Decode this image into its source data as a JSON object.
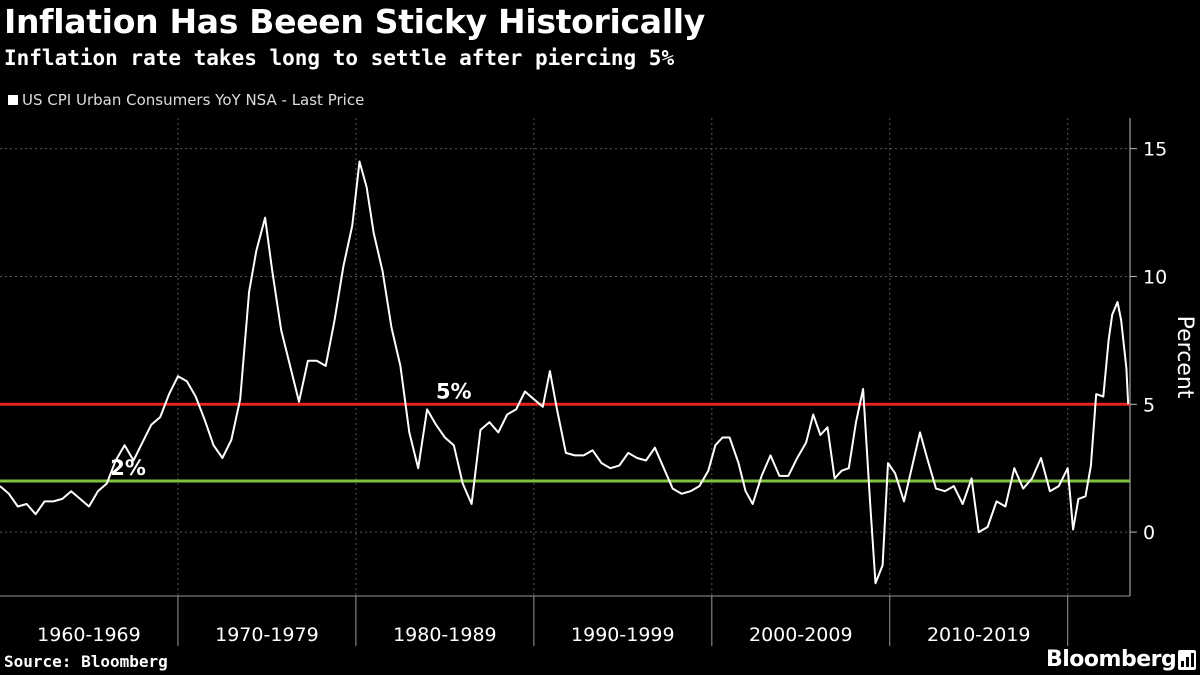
{
  "title": "Inflation Has Beeen Sticky Historically",
  "subtitle": "Inflation rate takes long to settle after piercing 5%",
  "source": "Source: Bloomberg",
  "brand": "Bloomberg",
  "colors": {
    "background": "#000000",
    "series": "#ffffff",
    "line_5pct": "#e8221e",
    "line_2pct": "#82c241",
    "grid": "#555555"
  },
  "chart_data": {
    "type": "line",
    "title": "Inflation Has Beeen Sticky Historically",
    "xlabel": "",
    "ylabel": "Percent",
    "xlim": [
      1960,
      2023.5
    ],
    "ylim": [
      -2.5,
      16.2
    ],
    "yticks": [
      0,
      5,
      10,
      15
    ],
    "ytick_labels": [
      "0",
      "5",
      "10",
      "15"
    ],
    "x_bands": [
      {
        "label": "1960-1969",
        "start": 1960,
        "end": 1970
      },
      {
        "label": "1970-1979",
        "start": 1970,
        "end": 1980
      },
      {
        "label": "1980-1989",
        "start": 1980,
        "end": 1990
      },
      {
        "label": "1990-1999",
        "start": 1990,
        "end": 2000
      },
      {
        "label": "2000-2009",
        "start": 2000,
        "end": 2010
      },
      {
        "label": "2010-2019",
        "start": 2010,
        "end": 2020
      }
    ],
    "reference_lines": [
      {
        "label": "5%",
        "value": 5,
        "color": "#e8221e",
        "label_x": 1985.5
      },
      {
        "label": "2%",
        "value": 2,
        "color": "#82c241",
        "label_x": 1967.2
      }
    ],
    "series": [
      {
        "name": "US CPI Urban Consumers YoY NSA - Last Price",
        "color": "#ffffff",
        "x": [
          1960.0,
          1960.5,
          1961.0,
          1961.5,
          1962.0,
          1962.5,
          1963.0,
          1963.5,
          1964.0,
          1964.5,
          1965.0,
          1965.5,
          1966.0,
          1966.5,
          1967.0,
          1967.5,
          1968.0,
          1968.5,
          1969.0,
          1969.5,
          1970.0,
          1970.5,
          1971.0,
          1971.5,
          1972.0,
          1972.5,
          1973.0,
          1973.5,
          1974.0,
          1974.4,
          1974.9,
          1975.3,
          1975.8,
          1976.3,
          1976.8,
          1977.3,
          1977.8,
          1978.3,
          1978.8,
          1979.3,
          1979.8,
          1980.2,
          1980.6,
          1981.0,
          1981.5,
          1982.0,
          1982.5,
          1983.0,
          1983.5,
          1984.0,
          1984.5,
          1985.0,
          1985.5,
          1986.0,
          1986.5,
          1987.0,
          1987.5,
          1988.0,
          1988.5,
          1989.0,
          1989.5,
          1990.0,
          1990.5,
          1990.9,
          1991.3,
          1991.8,
          1992.3,
          1992.8,
          1993.3,
          1993.8,
          1994.3,
          1994.8,
          1995.3,
          1995.8,
          1996.3,
          1996.8,
          1997.3,
          1997.8,
          1998.3,
          1998.8,
          1999.3,
          1999.8,
          2000.2,
          2000.6,
          2001.0,
          2001.5,
          2001.9,
          2002.3,
          2002.8,
          2003.3,
          2003.8,
          2004.3,
          2004.8,
          2005.3,
          2005.7,
          2006.1,
          2006.5,
          2006.9,
          2007.3,
          2007.7,
          2008.1,
          2008.5,
          2008.9,
          2009.2,
          2009.6,
          2009.9,
          2010.3,
          2010.8,
          2011.3,
          2011.7,
          2012.1,
          2012.6,
          2013.1,
          2013.6,
          2014.1,
          2014.6,
          2015.0,
          2015.5,
          2016.0,
          2016.5,
          2017.0,
          2017.5,
          2018.0,
          2018.5,
          2019.0,
          2019.5,
          2020.0,
          2020.3,
          2020.6,
          2021.0,
          2021.3,
          2021.6,
          2022.0,
          2022.3,
          2022.5,
          2022.8,
          2023.0,
          2023.3,
          2023.4
        ],
        "y": [
          1.8,
          1.5,
          1.0,
          1.1,
          0.7,
          1.2,
          1.2,
          1.3,
          1.6,
          1.3,
          1.0,
          1.6,
          1.9,
          2.8,
          3.4,
          2.8,
          3.5,
          4.2,
          4.5,
          5.4,
          6.1,
          5.9,
          5.3,
          4.4,
          3.4,
          2.9,
          3.6,
          5.2,
          9.4,
          11.0,
          12.3,
          10.2,
          7.9,
          6.5,
          5.1,
          6.7,
          6.7,
          6.5,
          8.3,
          10.4,
          12.0,
          14.5,
          13.5,
          11.7,
          10.2,
          8.0,
          6.5,
          3.9,
          2.5,
          4.8,
          4.2,
          3.7,
          3.4,
          1.9,
          1.1,
          4.0,
          4.3,
          3.9,
          4.6,
          4.8,
          5.5,
          5.2,
          4.9,
          6.3,
          4.8,
          3.1,
          3.0,
          3.0,
          3.2,
          2.7,
          2.5,
          2.6,
          3.1,
          2.9,
          2.8,
          3.3,
          2.5,
          1.7,
          1.5,
          1.6,
          1.8,
          2.4,
          3.4,
          3.7,
          3.7,
          2.7,
          1.6,
          1.1,
          2.2,
          3.0,
          2.2,
          2.2,
          2.9,
          3.5,
          4.6,
          3.8,
          4.1,
          2.1,
          2.4,
          2.5,
          4.3,
          5.6,
          1.1,
          -2.0,
          -1.3,
          2.7,
          2.3,
          1.2,
          2.7,
          3.9,
          2.9,
          1.7,
          1.6,
          1.8,
          1.1,
          2.1,
          0.0,
          0.2,
          1.2,
          1.0,
          2.5,
          1.7,
          2.1,
          2.9,
          1.6,
          1.8,
          2.5,
          0.1,
          1.3,
          1.4,
          2.6,
          5.4,
          5.3,
          7.5,
          8.5,
          9.0,
          8.3,
          6.4,
          5.0
        ]
      }
    ]
  }
}
